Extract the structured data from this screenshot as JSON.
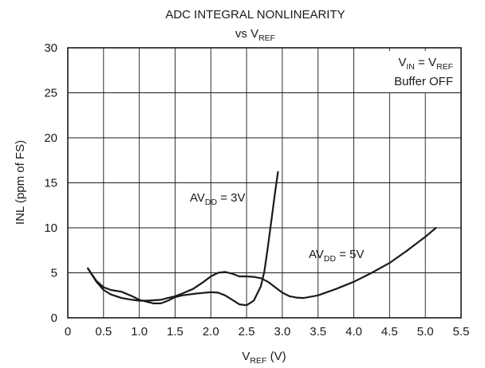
{
  "chart_data": {
    "type": "line",
    "title": "ADC INTEGRAL NONLINEARITY",
    "subtitle": {
      "prefix": "vs V",
      "sub": "REF"
    },
    "xlabel": {
      "main": "V",
      "sub": "REF",
      "suffix": " (V)"
    },
    "ylabel": "INL (ppm of FS)",
    "xlim": [
      0,
      5.5
    ],
    "ylim": [
      0,
      30
    ],
    "xticks": [
      "0",
      "0.5",
      "1.0",
      "1.5",
      "2.0",
      "2.5",
      "3.0",
      "3.5",
      "4.0",
      "4.5",
      "5.0",
      "5.5"
    ],
    "yticks": [
      "0",
      "5",
      "10",
      "15",
      "20",
      "25",
      "30"
    ],
    "grid": true,
    "annotations": [
      {
        "line1": {
          "a": "V",
          "asub": "IN",
          "mid": " = V",
          "bsub": "REF"
        },
        "line2": "Buffer OFF"
      }
    ],
    "series": [
      {
        "name": {
          "main": "AV",
          "sub": "DD",
          "suffix": " = 3V"
        },
        "x": [
          0.28,
          0.4,
          0.5,
          0.6,
          0.75,
          0.9,
          1.0,
          1.1,
          1.2,
          1.3,
          1.4,
          1.5,
          1.6,
          1.8,
          2.0,
          2.1,
          2.2,
          2.3,
          2.4,
          2.5,
          2.6,
          2.7,
          2.75,
          2.8,
          2.85,
          2.9,
          2.94
        ],
        "y": [
          5.5,
          4.1,
          3.4,
          3.1,
          2.9,
          2.4,
          2.0,
          1.8,
          1.6,
          1.6,
          1.9,
          2.3,
          2.5,
          2.7,
          2.85,
          2.8,
          2.5,
          2.0,
          1.5,
          1.4,
          1.9,
          3.5,
          5.2,
          8.0,
          11.0,
          14.0,
          16.2
        ]
      },
      {
        "name": {
          "main": "AV",
          "sub": "DD",
          "suffix": " = 5V"
        },
        "x": [
          0.28,
          0.4,
          0.5,
          0.6,
          0.75,
          0.9,
          1.0,
          1.1,
          1.2,
          1.3,
          1.4,
          1.5,
          1.6,
          1.75,
          1.9,
          2.0,
          2.1,
          2.2,
          2.3,
          2.4,
          2.5,
          2.6,
          2.7,
          2.8,
          2.9,
          3.0,
          3.1,
          3.2,
          3.3,
          3.5,
          3.75,
          4.0,
          4.25,
          4.5,
          4.75,
          5.0,
          5.15
        ],
        "y": [
          5.5,
          4.0,
          3.1,
          2.6,
          2.2,
          2.0,
          1.9,
          1.9,
          1.95,
          2.0,
          2.2,
          2.4,
          2.7,
          3.2,
          4.0,
          4.6,
          5.0,
          5.1,
          4.9,
          4.6,
          4.6,
          4.55,
          4.4,
          4.0,
          3.4,
          2.8,
          2.4,
          2.25,
          2.2,
          2.5,
          3.2,
          4.0,
          5.0,
          6.1,
          7.5,
          9.0,
          10.0
        ]
      }
    ]
  }
}
